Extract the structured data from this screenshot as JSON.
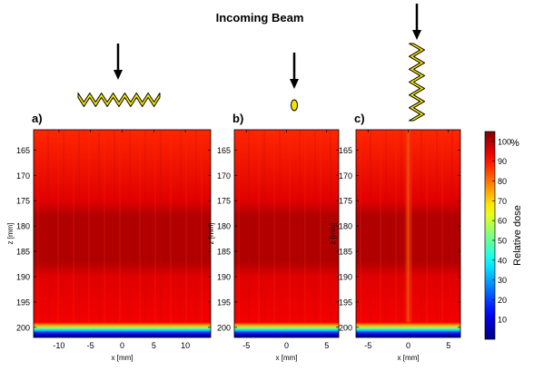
{
  "figure": {
    "title": "Incoming Beam"
  },
  "chart_data": [
    {
      "type": "heatmap",
      "panel_label": "a)",
      "beam_shape": "wide-zigzag",
      "xlabel": "x   [mm]",
      "ylabel": "z   [mm]",
      "xlim": [
        -14,
        14
      ],
      "ylim": [
        202,
        161
      ],
      "x_ticks": [
        -10,
        -5,
        0,
        5,
        10
      ],
      "y_ticks": [
        165,
        170,
        175,
        180,
        185,
        190,
        195,
        200
      ],
      "dose_profile": {
        "surface_dose_pct": 88,
        "plateau_dose_pct": 95,
        "dark_band_z": [
          178,
          187
        ],
        "dark_band_dose_pct": 100,
        "falloff_start_z": 199.0,
        "falloff_end_z": 201.5,
        "central_streak": false
      }
    },
    {
      "type": "heatmap",
      "panel_label": "b)",
      "beam_shape": "small-ellipse",
      "xlabel": "x   [mm]",
      "ylabel": "z   [mm]",
      "xlim": [
        -6.5,
        6.5
      ],
      "ylim": [
        202,
        161
      ],
      "x_ticks": [
        -5,
        0,
        5
      ],
      "y_ticks": [
        165,
        170,
        175,
        180,
        185,
        190,
        195,
        200
      ],
      "dose_profile": {
        "surface_dose_pct": 88,
        "plateau_dose_pct": 95,
        "dark_band_z": [
          178,
          187
        ],
        "dark_band_dose_pct": 100,
        "falloff_start_z": 199.0,
        "falloff_end_z": 201.5,
        "central_streak": false
      }
    },
    {
      "type": "heatmap",
      "panel_label": "c)",
      "beam_shape": "vertical-zigzag",
      "xlabel": "x   [mm]",
      "ylabel": "z   [mm]",
      "xlim": [
        -6.5,
        6.5
      ],
      "ylim": [
        202,
        161
      ],
      "x_ticks": [
        -5,
        0,
        5
      ],
      "y_ticks": [
        165,
        170,
        175,
        180,
        185,
        190,
        195,
        200
      ],
      "dose_profile": {
        "surface_dose_pct": 88,
        "plateau_dose_pct": 95,
        "dark_band_z": [
          178,
          187
        ],
        "dark_band_dose_pct": 100,
        "falloff_start_z": 199.0,
        "falloff_end_z": 201.5,
        "central_streak": true,
        "streak_x": 0,
        "streak_dose_pct": 82
      }
    }
  ],
  "colorbar": {
    "label": "Relative dose",
    "unit": "%",
    "ticks": [
      10,
      20,
      30,
      40,
      50,
      60,
      70,
      80,
      90,
      100
    ],
    "range": [
      0,
      105
    ],
    "colormap": "jet"
  },
  "colors": {
    "beam_fill": "#f5e400",
    "beam_stroke": "#000000",
    "arrow": "#000000"
  }
}
